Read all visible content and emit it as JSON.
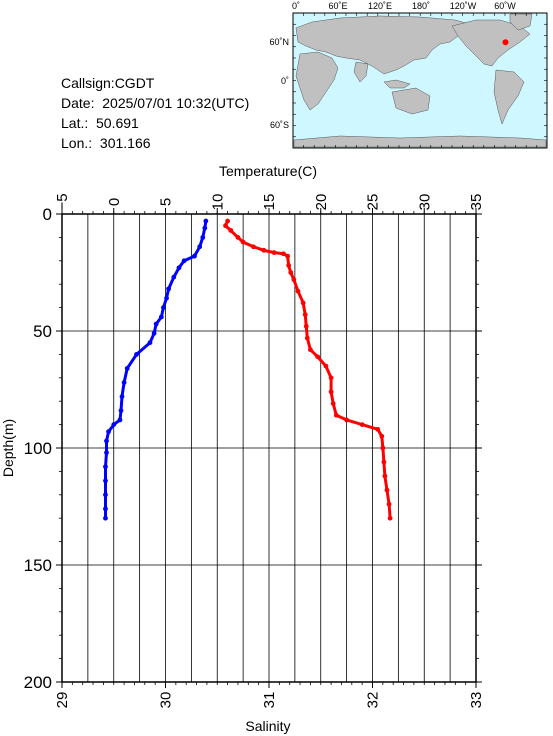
{
  "meta": {
    "callsign_label": "Callsign:CGDT",
    "date_label": "Date:  2025/07/01 10:32(UTC)",
    "lat_label": "Lat.:  50.691",
    "lon_label": "Lon.:  301.166"
  },
  "map": {
    "top_labels": [
      "0˚",
      "60˚E",
      "120˚E",
      "180˚",
      "120˚W",
      "60˚W"
    ],
    "left_labels": [
      "60˚N",
      "0˚",
      "60˚S"
    ],
    "ocean_color": "#cff7ff",
    "land_color": "#c0c0c0",
    "marker_color": "#ff0000",
    "station_lat": 50.691,
    "station_lon": 301.166
  },
  "chart_data": {
    "type": "line",
    "xlabel_top": "Temperature(C)",
    "xlabel_bottom": "Salinity",
    "ylabel": "Depth(m)",
    "temperature_range": [
      -5,
      35
    ],
    "salinity_range": [
      29,
      33
    ],
    "depth_range": [
      0,
      200
    ],
    "temperature_ticks": [
      "−5",
      "0",
      "5",
      "10",
      "15",
      "20",
      "25",
      "30",
      "35"
    ],
    "salinity_ticks": [
      "29",
      "30",
      "31",
      "32",
      "33"
    ],
    "depth_ticks": [
      "0",
      "50",
      "100",
      "150",
      "200"
    ],
    "grid": true,
    "series": [
      {
        "color": "#0000ff",
        "axis": "salinity",
        "points": [
          [
            30.39,
            3
          ],
          [
            30.38,
            6
          ],
          [
            30.36,
            10
          ],
          [
            30.33,
            14
          ],
          [
            30.28,
            18
          ],
          [
            30.18,
            20
          ],
          [
            30.13,
            23
          ],
          [
            30.08,
            27
          ],
          [
            30.03,
            32
          ],
          [
            30.01,
            36
          ],
          [
            29.98,
            40
          ],
          [
            29.96,
            44
          ],
          [
            29.91,
            47
          ],
          [
            29.89,
            51
          ],
          [
            29.85,
            55
          ],
          [
            29.72,
            60
          ],
          [
            29.63,
            66
          ],
          [
            29.6,
            72
          ],
          [
            29.58,
            78
          ],
          [
            29.57,
            84
          ],
          [
            29.56,
            88
          ],
          [
            29.5,
            90
          ],
          [
            29.45,
            93
          ],
          [
            29.43,
            97
          ],
          [
            29.43,
            102
          ],
          [
            29.42,
            108
          ],
          [
            29.42,
            114
          ],
          [
            29.42,
            120
          ],
          [
            29.42,
            126
          ],
          [
            29.42,
            130
          ]
        ]
      },
      {
        "color": "#ff0000",
        "axis": "temperature",
        "points": [
          [
            11.0,
            3
          ],
          [
            10.8,
            5
          ],
          [
            11.3,
            7
          ],
          [
            12.0,
            10
          ],
          [
            12.5,
            12
          ],
          [
            13.5,
            14
          ],
          [
            14.5,
            15.5
          ],
          [
            15.5,
            16.5
          ],
          [
            16.4,
            17
          ],
          [
            16.8,
            18
          ],
          [
            16.9,
            22
          ],
          [
            17.1,
            25
          ],
          [
            17.4,
            28
          ],
          [
            17.8,
            33
          ],
          [
            18.3,
            38
          ],
          [
            18.5,
            43
          ],
          [
            18.6,
            48
          ],
          [
            18.7,
            53
          ],
          [
            19.0,
            58
          ],
          [
            19.7,
            61
          ],
          [
            20.5,
            65
          ],
          [
            21.0,
            70
          ],
          [
            21.0,
            76
          ],
          [
            21.2,
            81
          ],
          [
            21.5,
            86
          ],
          [
            22.5,
            88
          ],
          [
            24.0,
            90
          ],
          [
            25.5,
            92
          ],
          [
            25.9,
            95
          ],
          [
            26.0,
            100
          ],
          [
            26.1,
            106
          ],
          [
            26.2,
            112
          ],
          [
            26.4,
            118
          ],
          [
            26.6,
            124
          ],
          [
            26.7,
            130
          ]
        ]
      }
    ]
  }
}
